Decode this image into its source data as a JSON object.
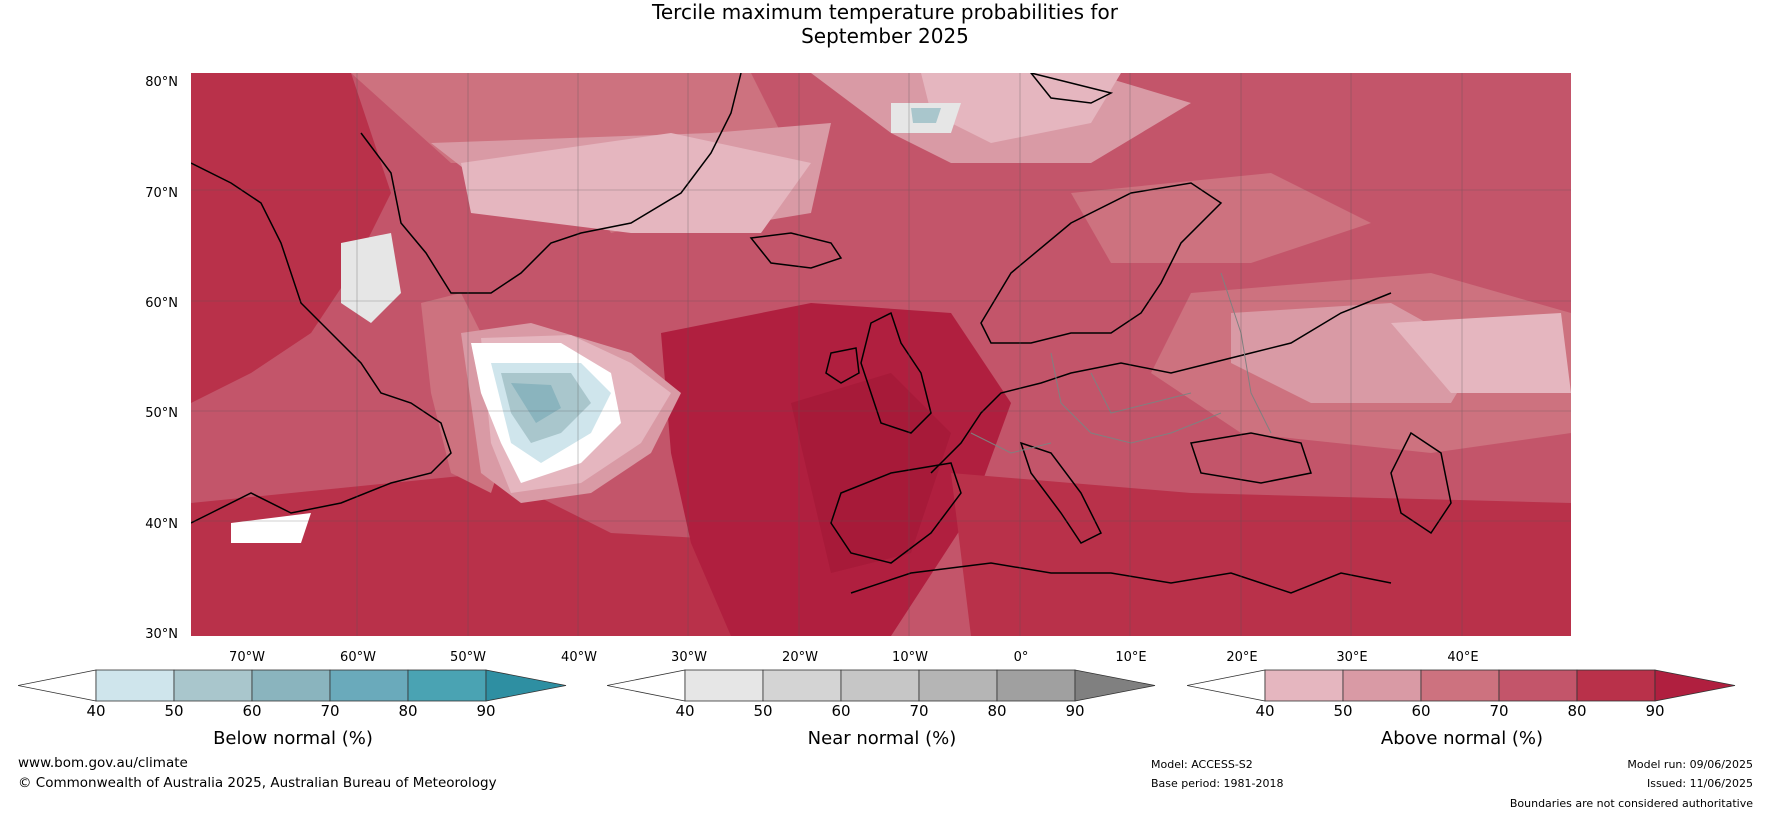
{
  "title": {
    "line1": "Tercile maximum temperature probabilities for",
    "line2": "September 2025"
  },
  "map": {
    "lat_labels": [
      "80°N",
      "70°N",
      "60°N",
      "50°N",
      "40°N",
      "30°N"
    ],
    "lon_labels": [
      "70°W",
      "60°W",
      "50°W",
      "40°W",
      "30°W",
      "20°W",
      "10°W",
      "0°",
      "10°E",
      "20°E",
      "30°E",
      "40°E"
    ],
    "background_color": "#c2384f"
  },
  "colorbars": [
    {
      "title": "Below normal (%)",
      "ticks": [
        "40",
        "50",
        "60",
        "70",
        "80",
        "90"
      ],
      "colors": [
        "#ffffff",
        "#cfe5ec",
        "#a9c6cc",
        "#8ab4be",
        "#6aaabb",
        "#4aa3b3",
        "#2e8fa2"
      ]
    },
    {
      "title": "Near normal (%)",
      "ticks": [
        "40",
        "50",
        "60",
        "70",
        "80",
        "90"
      ],
      "colors": [
        "#ffffff",
        "#e6e6e6",
        "#d4d4d4",
        "#c6c6c6",
        "#b5b5b5",
        "#a0a0a0",
        "#808080"
      ]
    },
    {
      "title": "Above normal (%)",
      "ticks": [
        "40",
        "50",
        "60",
        "70",
        "80",
        "90"
      ],
      "colors": [
        "#ffffff",
        "#e5b6bf",
        "#d99aa5",
        "#cd727f",
        "#c3556a",
        "#b9314a",
        "#b01f3f"
      ]
    }
  ],
  "footer": {
    "website": "www.bom.gov.au/climate",
    "copyright": "© Commonwealth of Australia 2025, Australian Bureau of Meteorology",
    "model": "Model: ACCESS-S2",
    "base_period": "Base period: 1981-2018",
    "model_run": "Model run: 09/06/2025",
    "issued": "Issued: 11/06/2025",
    "disclaimer": "Boundaries are not considered authoritative"
  }
}
